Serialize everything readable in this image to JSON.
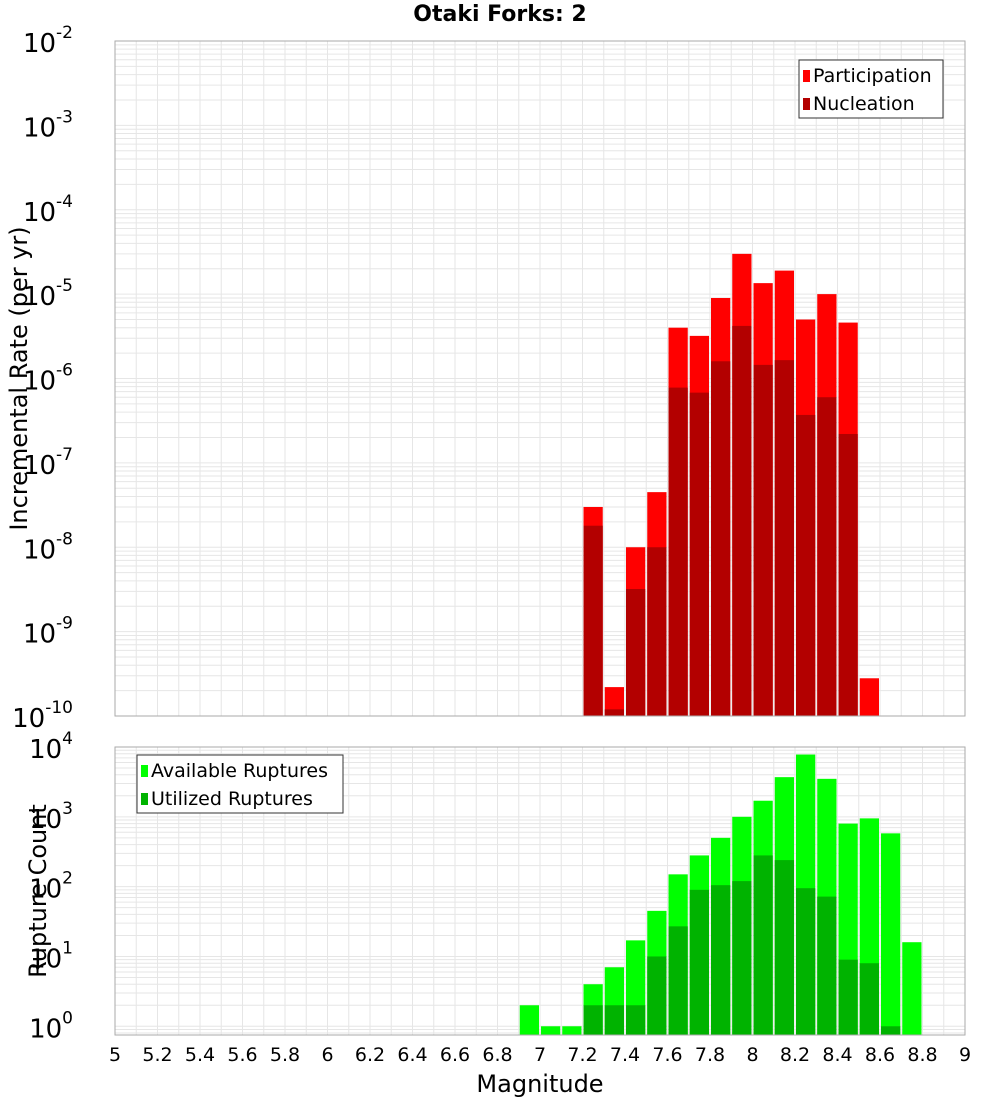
{
  "title": "Otaki Forks: 2",
  "colors": {
    "participation": "#ff0000",
    "nucleation": "#b30000",
    "available": "#00ff00",
    "utilized": "#00b300",
    "grid": "#e6e6e6",
    "frame": "#aaaaaa"
  },
  "chart_data": [
    {
      "type": "bar",
      "ylabel": "Incremental Rate (per yr)",
      "yscale": "log",
      "ylim": [
        1e-10,
        0.01
      ],
      "xlim": [
        5,
        9
      ],
      "bin_width": 0.1,
      "ytick_labels": [
        {
          "base": "10",
          "exp": "-10"
        },
        {
          "base": "10",
          "exp": "-9"
        },
        {
          "base": "10",
          "exp": "-8"
        },
        {
          "base": "10",
          "exp": "-7"
        },
        {
          "base": "10",
          "exp": "-6"
        },
        {
          "base": "10",
          "exp": "-5"
        },
        {
          "base": "10",
          "exp": "-4"
        },
        {
          "base": "10",
          "exp": "-3"
        },
        {
          "base": "10",
          "exp": "-2"
        }
      ],
      "legend_position": "top-right",
      "series": [
        {
          "name": "Participation",
          "x": [
            7.25,
            7.35,
            7.45,
            7.55,
            7.65,
            7.75,
            7.85,
            7.95,
            8.05,
            8.15,
            8.25,
            8.35,
            8.45,
            8.55
          ],
          "values": [
            3e-08,
            2.2e-10,
            1e-08,
            4.5e-08,
            4e-06,
            3.2e-06,
            9e-06,
            3e-05,
            1.35e-05,
            1.9e-05,
            5e-06,
            1e-05,
            4.6e-06,
            2.8e-10
          ]
        },
        {
          "name": "Nucleation",
          "x": [
            7.25,
            7.35,
            7.45,
            7.55,
            7.65,
            7.75,
            7.85,
            7.95,
            8.05,
            8.15,
            8.25,
            8.35,
            8.45
          ],
          "values": [
            1.8e-08,
            1.2e-10,
            3.2e-09,
            1e-08,
            7.8e-07,
            6.8e-07,
            1.6e-06,
            4.2e-06,
            1.45e-06,
            1.65e-06,
            3.7e-07,
            6e-07,
            2.2e-07
          ]
        }
      ]
    },
    {
      "type": "bar",
      "xlabel": "Magnitude",
      "ylabel": "Rupture Count",
      "yscale": "log",
      "ylim": [
        0.75,
        10000
      ],
      "xlim": [
        5,
        9
      ],
      "bin_width": 0.1,
      "ytick_labels": [
        {
          "base": "10",
          "exp": "0"
        },
        {
          "base": "10",
          "exp": "1"
        },
        {
          "base": "10",
          "exp": "2"
        },
        {
          "base": "10",
          "exp": "3"
        },
        {
          "base": "10",
          "exp": "4"
        }
      ],
      "xtick_labels": [
        "5",
        "5.2",
        "5.4",
        "5.6",
        "5.8",
        "6",
        "6.2",
        "6.4",
        "6.6",
        "6.8",
        "7",
        "7.2",
        "7.4",
        "7.6",
        "7.8",
        "8",
        "8.2",
        "8.4",
        "8.6",
        "8.8",
        "9"
      ],
      "legend_position": "top-left",
      "series": [
        {
          "name": "Available Ruptures",
          "x": [
            6.95,
            7.05,
            7.15,
            7.25,
            7.35,
            7.45,
            7.55,
            7.65,
            7.75,
            7.85,
            7.95,
            8.05,
            8.15,
            8.25,
            8.35,
            8.45,
            8.55,
            8.65,
            8.75
          ],
          "values": [
            2,
            1,
            1,
            4,
            7,
            17,
            45,
            150,
            280,
            500,
            1000,
            1700,
            3700,
            7800,
            3500,
            800,
            950,
            580,
            16
          ]
        },
        {
          "name": "Utilized Ruptures",
          "x": [
            7.25,
            7.35,
            7.45,
            7.55,
            7.65,
            7.75,
            7.85,
            7.95,
            8.05,
            8.15,
            8.25,
            8.35,
            8.45,
            8.55,
            8.65
          ],
          "values": [
            2,
            2,
            2,
            10,
            27,
            90,
            105,
            120,
            280,
            240,
            95,
            72,
            9,
            8,
            1
          ]
        }
      ]
    }
  ]
}
